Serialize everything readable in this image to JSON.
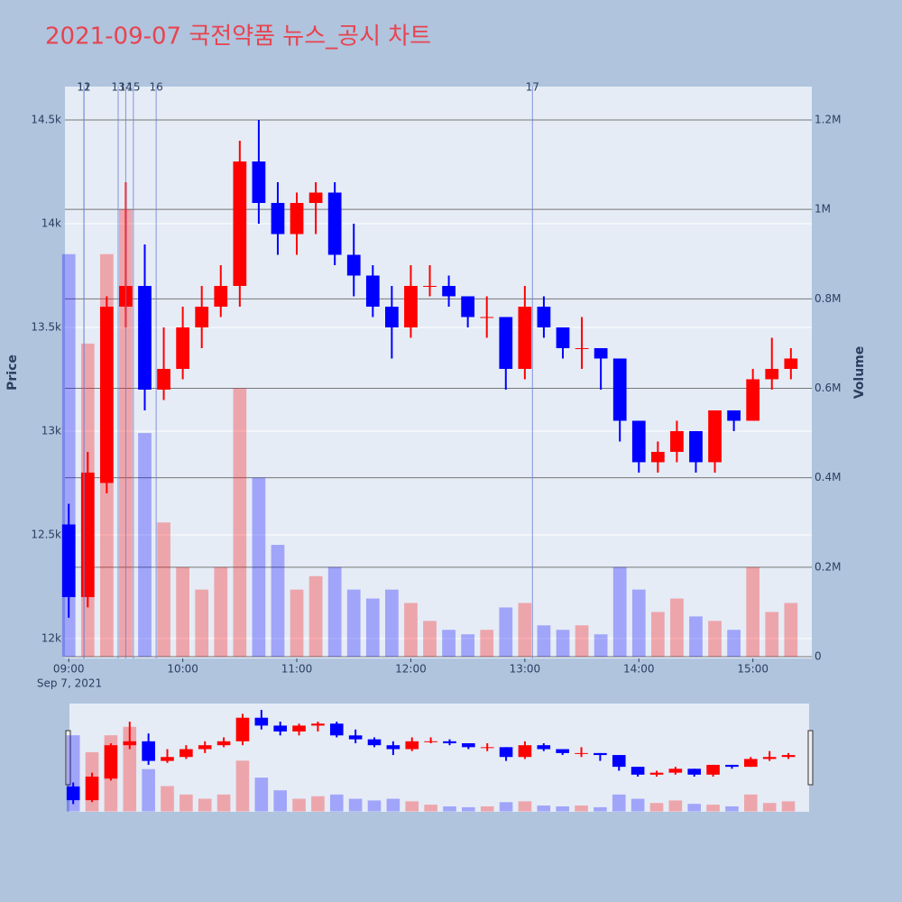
{
  "chart_data": {
    "type": "candlestick",
    "title": "2021-09-07 국전약품 뉴스_공시 차트",
    "y_label": "Price",
    "y2_label": "Volume",
    "xtick_date": "Sep 7, 2021",
    "x": [
      "09:00",
      "09:10",
      "09:20",
      "09:30",
      "09:40",
      "09:50",
      "10:00",
      "10:10",
      "10:20",
      "10:30",
      "10:40",
      "10:50",
      "11:00",
      "11:10",
      "11:20",
      "11:30",
      "11:40",
      "11:50",
      "12:00",
      "12:10",
      "12:20",
      "12:30",
      "12:40",
      "12:50",
      "13:00",
      "13:10",
      "13:20",
      "13:30",
      "13:40",
      "13:50",
      "14:00",
      "14:10",
      "14:20",
      "14:30",
      "14:40",
      "14:50",
      "15:00",
      "15:10",
      "15:20"
    ],
    "open": [
      12550,
      12200,
      12750,
      13600,
      13700,
      13200,
      13300,
      13500,
      13600,
      13700,
      14300,
      14100,
      13950,
      14100,
      14150,
      13850,
      13750,
      13600,
      13500,
      13700,
      13700,
      13650,
      13550,
      13550,
      13300,
      13600,
      13500,
      13400,
      13400,
      13350,
      13050,
      12850,
      12900,
      13000,
      12850,
      13100,
      13050,
      13250,
      13300
    ],
    "high": [
      12650,
      12900,
      13650,
      14200,
      13900,
      13500,
      13600,
      13700,
      13800,
      14400,
      14500,
      14200,
      14150,
      14200,
      14200,
      14000,
      13800,
      13700,
      13800,
      13800,
      13750,
      13650,
      13650,
      13550,
      13700,
      13650,
      13500,
      13550,
      13400,
      13350,
      13050,
      12950,
      13050,
      13000,
      13100,
      13100,
      13300,
      13450,
      13400
    ],
    "low": [
      12100,
      12150,
      12700,
      13500,
      13100,
      13150,
      13250,
      13400,
      13550,
      13600,
      14000,
      13850,
      13850,
      13950,
      13800,
      13650,
      13550,
      13350,
      13450,
      13650,
      13600,
      13500,
      13450,
      13200,
      13250,
      13450,
      13350,
      13300,
      13200,
      12950,
      12800,
      12800,
      12850,
      12800,
      12800,
      13000,
      13050,
      13200,
      13250
    ],
    "close": [
      12200,
      12800,
      13600,
      13700,
      13200,
      13300,
      13500,
      13600,
      13700,
      14300,
      14100,
      13950,
      14100,
      14150,
      13850,
      13750,
      13600,
      13500,
      13700,
      13700,
      13650,
      13550,
      13550,
      13300,
      13600,
      13500,
      13400,
      13400,
      13350,
      13050,
      12850,
      12900,
      13000,
      12850,
      13100,
      13050,
      13250,
      13300,
      13350
    ],
    "volume": [
      900000,
      700000,
      900000,
      1000000,
      500000,
      300000,
      200000,
      150000,
      200000,
      600000,
      400000,
      250000,
      150000,
      180000,
      200000,
      150000,
      130000,
      150000,
      120000,
      80000,
      60000,
      50000,
      60000,
      110000,
      120000,
      70000,
      60000,
      70000,
      50000,
      200000,
      150000,
      100000,
      130000,
      90000,
      80000,
      60000,
      200000,
      100000,
      120000
    ],
    "increasing_color": "#ff0000",
    "decreasing_color": "#0000ff",
    "annotations": [
      {
        "x": "09:08",
        "label": "11"
      },
      {
        "x": "09:08",
        "label": "12"
      },
      {
        "x": "09:26",
        "label": "13"
      },
      {
        "x": "09:30",
        "label": "14"
      },
      {
        "x": "09:34",
        "label": "15"
      },
      {
        "x": "09:46",
        "label": "16"
      },
      {
        "x": "13:04",
        "label": "17"
      }
    ],
    "xlim": [
      "08:58",
      "15:31"
    ],
    "xticks": [
      "09:00",
      "10:00",
      "11:00",
      "12:00",
      "13:00",
      "14:00",
      "15:00"
    ],
    "ylim": [
      11904,
      14661
    ],
    "yticks": [
      {
        "value": 12000,
        "label": "12k"
      },
      {
        "value": 12500,
        "label": "12.5k"
      },
      {
        "value": 13000,
        "label": "13k"
      },
      {
        "value": 13500,
        "label": "13.5k"
      },
      {
        "value": 14000,
        "label": "14k"
      },
      {
        "value": 14500,
        "label": "14.5k"
      }
    ],
    "y2lim": [
      -4000,
      1274600
    ],
    "y2ticks": [
      0,
      {
        "value": 200000,
        "label": "0.2M"
      },
      {
        "value": 400000,
        "label": "0.4M"
      },
      {
        "value": 600000,
        "label": "0.6M"
      },
      {
        "value": 800000,
        "label": "0.8M"
      },
      {
        "value": 1000000,
        "label": "1M"
      },
      {
        "value": 1200000,
        "label": "1.2M"
      }
    ],
    "grid": true
  }
}
